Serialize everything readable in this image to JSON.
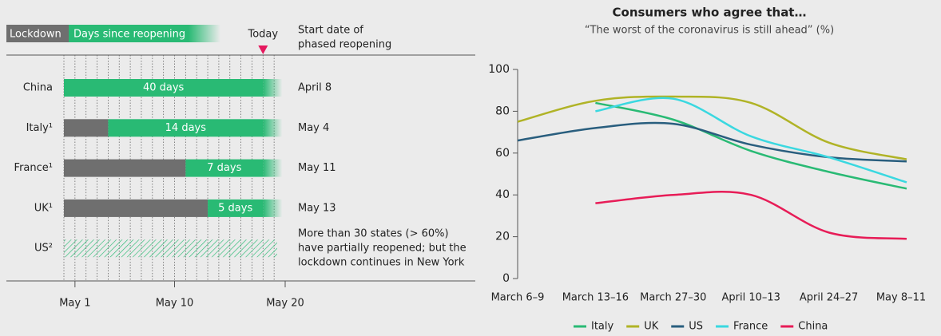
{
  "chart_data": [
    {
      "type": "timeline",
      "legend": [
        "Lockdown",
        "Days since reopening"
      ],
      "today_label": "Today",
      "today": 18,
      "start_header": [
        "Start date of",
        "phased reopening"
      ],
      "rows": [
        {
          "name": "China",
          "days": 40,
          "days_label": "40 days",
          "start": [
            "April 8"
          ]
        },
        {
          "name": "Italy¹",
          "days": 14,
          "days_label": "14 days",
          "start": [
            "May 4"
          ]
        },
        {
          "name": "France¹",
          "days": 7,
          "days_label": "7 days",
          "start": [
            "May 11"
          ]
        },
        {
          "name": "UK¹",
          "days": 5,
          "days_label": "5 days",
          "start": [
            "May 13"
          ]
        },
        {
          "name": "US²",
          "days": null,
          "days_label": null,
          "start": [
            "More than 30 states (> 60%)",
            "have partially reopened; but the",
            "lockdown continues in New York"
          ]
        }
      ],
      "xlim": [
        0,
        20
      ],
      "xticks": [
        {
          "value": 1,
          "label": "May 1"
        },
        {
          "value": 10,
          "label": "May 10"
        },
        {
          "value": 20,
          "label": "May 20"
        }
      ],
      "minor_xticks": [
        0,
        1,
        2,
        3,
        4,
        5,
        6,
        7,
        8,
        9,
        10,
        11,
        12,
        13,
        14,
        15,
        16,
        17,
        18,
        19
      ],
      "colors": {
        "lockdown": "#6f6f6f",
        "reopening": "#29ba74",
        "today": "#e5195e"
      }
    },
    {
      "type": "line",
      "title": "Consumers who agree that…",
      "subtitle": "“The worst of the coronavirus is still ahead” (%)",
      "categories": [
        "March 6–9",
        "March 13–16",
        "March 27–30",
        "April 10–13",
        "April 24–27",
        "May 8–11"
      ],
      "series": [
        {
          "name": "Italy",
          "color": "#29ba74",
          "values": [
            null,
            84,
            76,
            61,
            51,
            43
          ]
        },
        {
          "name": "UK",
          "color": "#b0b326",
          "values": [
            75,
            85,
            87,
            84,
            65,
            57
          ]
        },
        {
          "name": "US",
          "color": "#295e7e",
          "values": [
            66,
            72,
            74,
            64,
            58,
            56
          ]
        },
        {
          "name": "France",
          "color": "#3ad8e0",
          "values": [
            null,
            80,
            86,
            68,
            58,
            46
          ]
        },
        {
          "name": "China",
          "color": "#e71c57",
          "values": [
            null,
            36,
            40,
            40,
            22,
            19
          ]
        }
      ],
      "ylim": [
        0,
        100
      ],
      "yticks": [
        0,
        20,
        40,
        60,
        80,
        100
      ]
    }
  ]
}
